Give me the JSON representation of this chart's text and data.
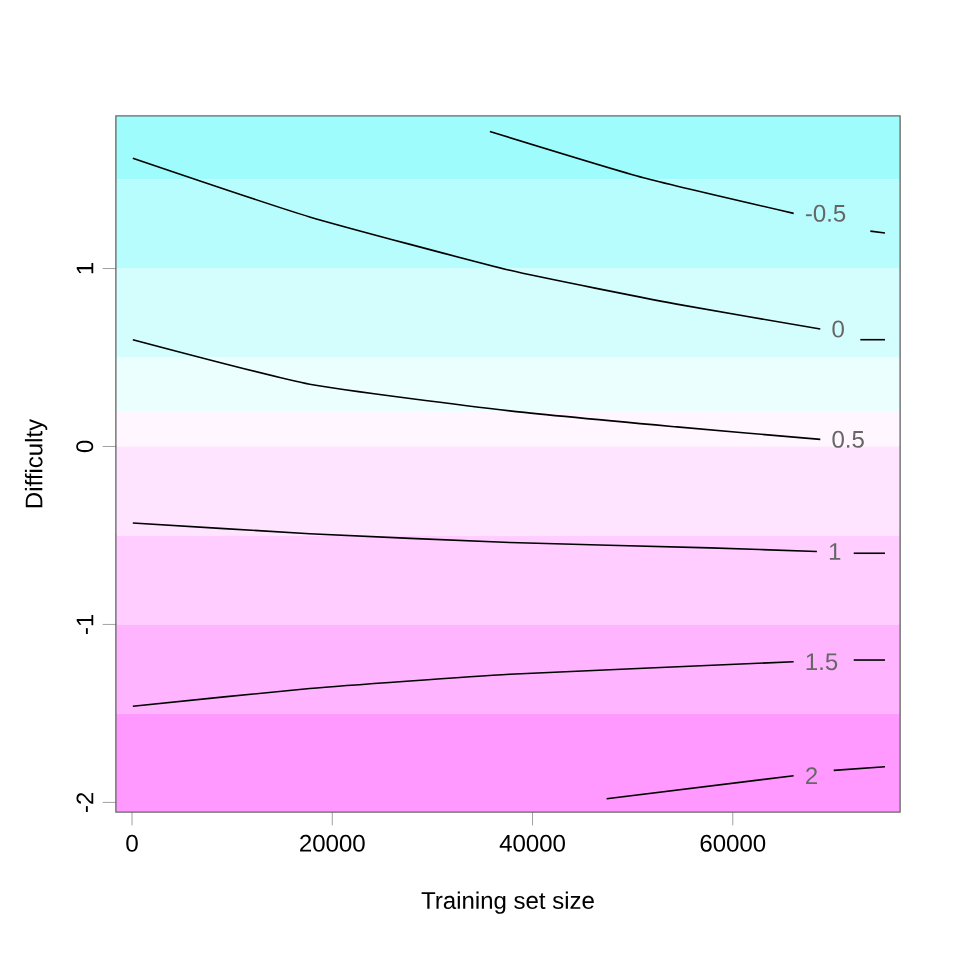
{
  "chart_data": {
    "type": "line",
    "xlabel": "Training set size",
    "ylabel": "Difficulty",
    "xlim": [
      -1600,
      76700
    ],
    "ylim": [
      -2.054,
      1.857
    ],
    "xticks": [
      0,
      20000,
      40000,
      60000
    ],
    "yticks": [
      -2,
      -1,
      0,
      1
    ],
    "grid": false,
    "marker": "none",
    "line_style": "solid",
    "bands": [
      {
        "axis": "y",
        "from": 1.5,
        "to": 1.857,
        "color": "#9ffcfc"
      },
      {
        "axis": "y",
        "from": 1.0,
        "to": 1.5,
        "color": "#b8fdfd"
      },
      {
        "axis": "y",
        "from": 0.5,
        "to": 1.0,
        "color": "#d4fefe"
      },
      {
        "axis": "y",
        "from": 0.2,
        "to": 0.5,
        "color": "#ecffff"
      },
      {
        "axis": "y",
        "from": 0.0,
        "to": 0.2,
        "color": "#fff6ff"
      },
      {
        "axis": "y",
        "from": -0.5,
        "to": 0.0,
        "color": "#ffe4ff"
      },
      {
        "axis": "y",
        "from": -1.0,
        "to": -0.5,
        "color": "#ffcdff"
      },
      {
        "axis": "y",
        "from": -1.5,
        "to": -1.0,
        "color": "#ffb4ff"
      },
      {
        "axis": "y",
        "from": -2.054,
        "to": -1.5,
        "color": "#ff98ff"
      }
    ],
    "series": [
      {
        "name": "-0.5",
        "color": "#000000",
        "x": [
          35740,
          51080,
          66080
        ],
        "values": [
          1.77,
          1.51,
          1.31
        ]
      },
      {
        "color": "#000000",
        "x": [
          73740,
          75200
        ],
        "values": [
          1.21,
          1.2
        ]
      },
      {
        "name": "0",
        "color": "#000000",
        "x": [
          80,
          17740,
          37740,
          54400,
          68740
        ],
        "values": [
          1.62,
          1.29,
          0.99,
          0.8,
          0.66
        ]
      },
      {
        "color": "#000000",
        "x": [
          72740,
          75200
        ],
        "values": [
          0.6,
          0.6
        ]
      },
      {
        "name": "0.5",
        "color": "#000000",
        "x": [
          80,
          17740,
          37740,
          54400,
          68740
        ],
        "values": [
          0.6,
          0.35,
          0.2,
          0.11,
          0.04
        ]
      },
      {
        "name": "1",
        "color": "#000000",
        "x": [
          80,
          17740,
          37740,
          57740,
          68400
        ],
        "values": [
          -0.43,
          -0.49,
          -0.54,
          -0.57,
          -0.59
        ]
      },
      {
        "color": "#000000",
        "x": [
          72080,
          75200
        ],
        "values": [
          -0.6,
          -0.6
        ]
      },
      {
        "name": "1.5",
        "color": "#000000",
        "x": [
          80,
          17740,
          37740,
          66080
        ],
        "values": [
          -1.46,
          -1.36,
          -1.28,
          -1.21
        ]
      },
      {
        "color": "#000000",
        "x": [
          72080,
          75200
        ],
        "values": [
          -1.2,
          -1.2
        ]
      },
      {
        "name": "2",
        "color": "#000000",
        "x": [
          47400,
          66080
        ],
        "values": [
          -1.98,
          -1.85
        ]
      },
      {
        "color": "#000000",
        "x": [
          70080,
          75200
        ],
        "values": [
          -1.82,
          -1.8
        ]
      }
    ]
  }
}
